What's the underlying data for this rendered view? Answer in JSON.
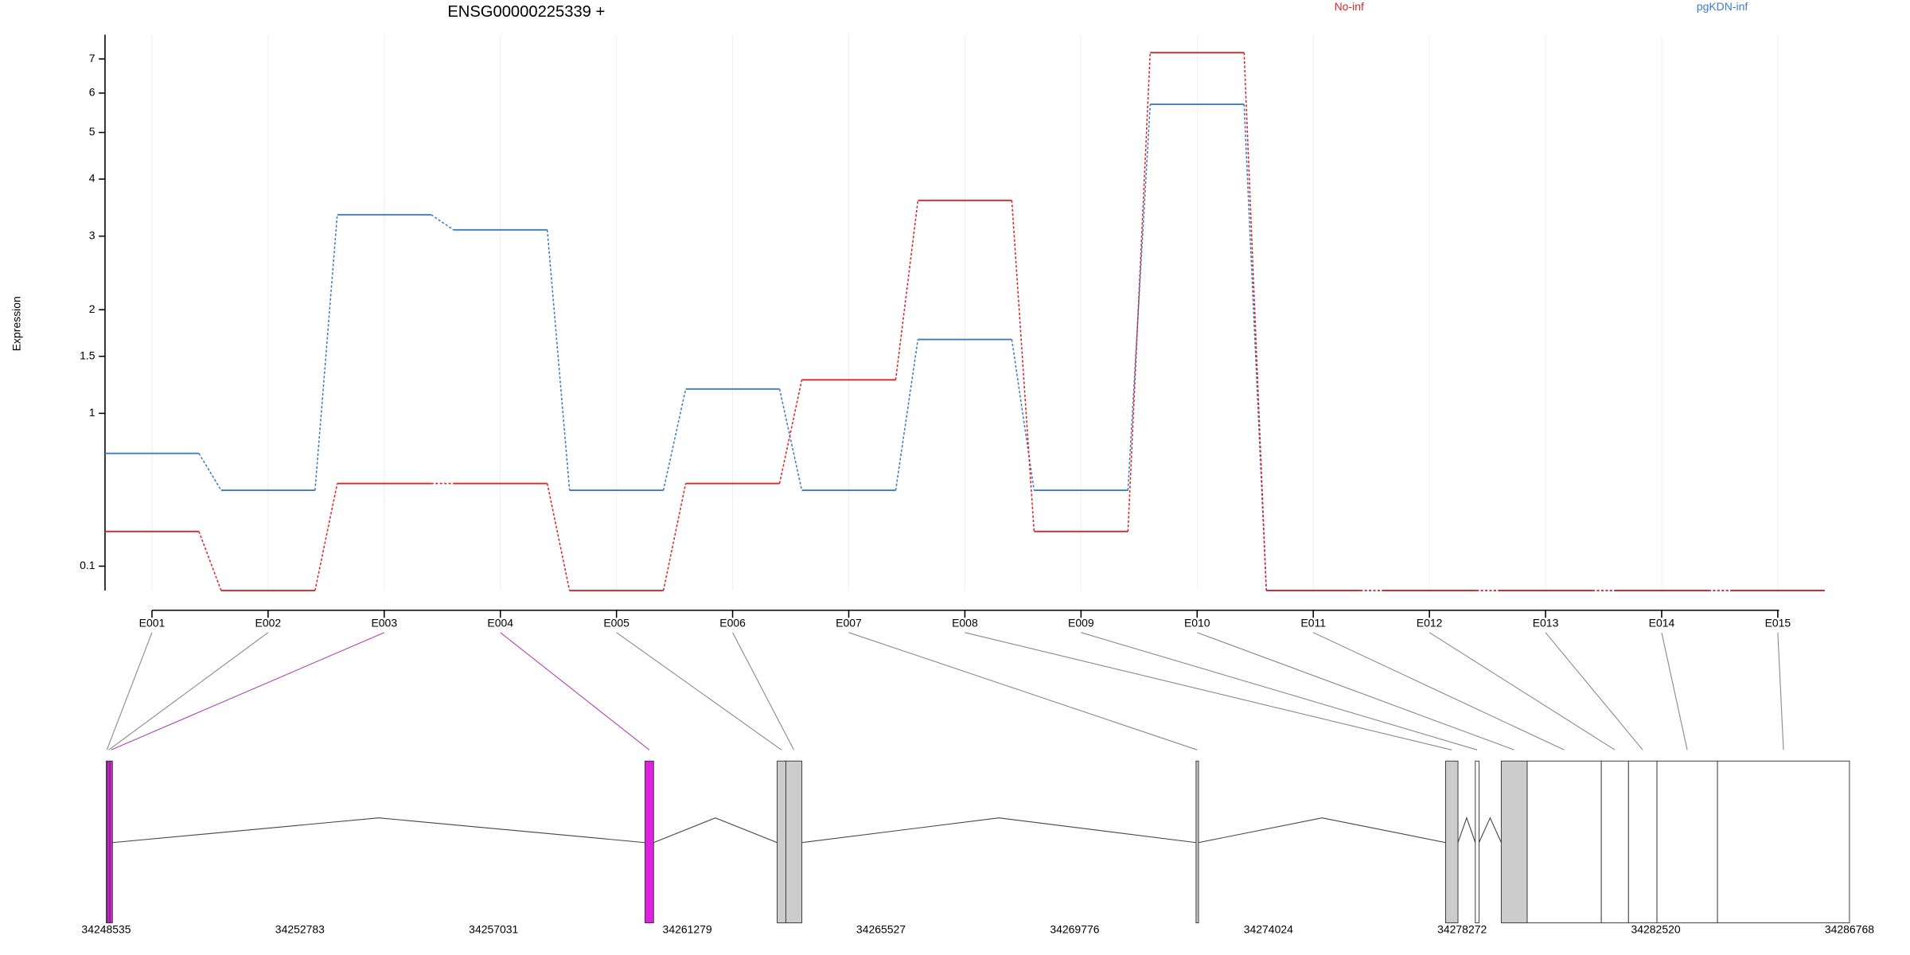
{
  "chart_data": {
    "type": "line",
    "title": "ENSG00000225339 +",
    "y_label": "Expression",
    "yscale": "log1p",
    "ylim": [
      0,
      7.8
    ],
    "yticks": [
      0.1,
      1,
      1.5,
      2,
      3,
      4,
      5,
      6,
      7
    ],
    "categories": [
      "E001",
      "E002",
      "E003",
      "E004",
      "E005",
      "E006",
      "E007",
      "E008",
      "E009",
      "E010",
      "E011",
      "E012",
      "E013",
      "E014",
      "E015"
    ],
    "series": [
      {
        "name": "pgKDN-inf",
        "color": "#3b7cc4",
        "values": [
          0.71,
          0.48,
          3.35,
          3.1,
          0.48,
          1.2,
          0.48,
          1.67,
          0.48,
          5.7,
          0,
          0,
          0,
          0,
          0
        ]
      },
      {
        "name": "No-inf",
        "color": "#d62728",
        "values": [
          0.26,
          0,
          0.52,
          0.52,
          0,
          0.52,
          1.28,
          3.6,
          0.26,
          7.2,
          0,
          0,
          0,
          0,
          0
        ]
      }
    ],
    "gene_model": {
      "xlim": [
        34248535,
        34286768
      ],
      "xticks": [
        34248535,
        34252783,
        34257031,
        34261279,
        34265527,
        34269776,
        34274024,
        34278272,
        34282520,
        34286768
      ],
      "exons": [
        {
          "start": 34248535,
          "end": 34248562,
          "color": "#e020e0",
          "line_color": "#888888"
        },
        {
          "start": 34248562,
          "end": 34248616,
          "color": "#e020e0",
          "line_color": "#888888"
        },
        {
          "start": 34248616,
          "end": 34248671,
          "color": "#e020e0",
          "line_color": "#b040b0"
        },
        {
          "start": 34260351,
          "end": 34260540,
          "color": "#e020e0",
          "line_color": "#b040b0"
        },
        {
          "start": 34263250,
          "end": 34263440,
          "color": "#cccccc",
          "line_color": "#888888"
        },
        {
          "start": 34263440,
          "end": 34263792,
          "color": "#cccccc",
          "line_color": "#888888"
        },
        {
          "start": 34272437,
          "end": 34272491,
          "color": "#cccccc",
          "line_color": "#888888"
        },
        {
          "start": 34277911,
          "end": 34278182,
          "color": "#cccccc",
          "line_color": "#888888"
        },
        {
          "start": 34278562,
          "end": 34278643,
          "color": "#ffffff",
          "line_color": "#888888"
        },
        {
          "start": 34279131,
          "end": 34279700,
          "color": "#cccccc",
          "line_color": "#888888"
        },
        {
          "start": 34279700,
          "end": 34281326,
          "color": "#ffffff",
          "line_color": "#888888"
        },
        {
          "start": 34281326,
          "end": 34281922,
          "color": "#ffffff",
          "line_color": "#888888"
        },
        {
          "start": 34281922,
          "end": 34282546,
          "color": "#ffffff",
          "line_color": "#888888"
        },
        {
          "start": 34282546,
          "end": 34283873,
          "color": "#ffffff",
          "line_color": "#888888"
        },
        {
          "start": 34283873,
          "end": 34286768,
          "color": "#ffffff",
          "line_color": "#888888"
        }
      ]
    }
  }
}
